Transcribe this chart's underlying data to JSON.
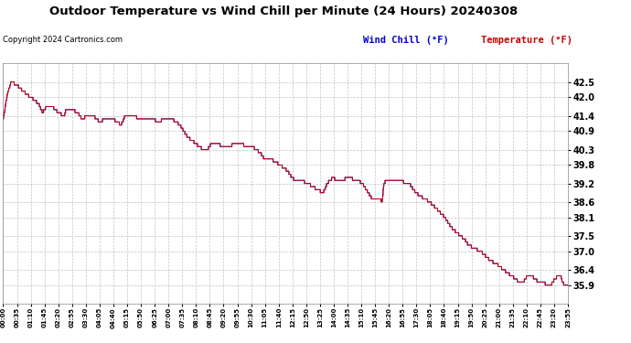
{
  "title": "Outdoor Temperature vs Wind Chill per Minute (24 Hours) 20240308",
  "copyright": "Copyright 2024 Cartronics.com",
  "legend_wind_chill": "Wind Chill (°F)",
  "legend_temperature": "Temperature (°F)",
  "ylim_min": 35.3,
  "ylim_max": 43.1,
  "yticks": [
    42.5,
    42.0,
    41.4,
    40.9,
    40.3,
    39.8,
    39.2,
    38.6,
    38.1,
    37.5,
    37.0,
    36.4,
    35.9
  ],
  "background_color": "#ffffff",
  "plot_bg_color": "#ffffff",
  "grid_color": "#bbbbbb",
  "wind_chill_color": "#0000cc",
  "temperature_color": "#cc0000",
  "xtick_labels": [
    "00:00",
    "00:35",
    "01:10",
    "01:45",
    "02:20",
    "02:55",
    "03:30",
    "04:05",
    "04:40",
    "05:15",
    "05:50",
    "06:25",
    "07:00",
    "07:35",
    "08:10",
    "08:45",
    "09:20",
    "09:55",
    "10:30",
    "11:05",
    "11:40",
    "12:15",
    "12:50",
    "13:25",
    "14:00",
    "14:35",
    "15:10",
    "15:45",
    "16:20",
    "16:55",
    "17:30",
    "18:05",
    "18:40",
    "19:15",
    "19:50",
    "20:25",
    "21:00",
    "21:35",
    "22:10",
    "22:45",
    "23:20",
    "23:55"
  ],
  "waypoints_temp": [
    [
      0,
      41.3
    ],
    [
      10,
      42.1
    ],
    [
      20,
      42.5
    ],
    [
      35,
      42.4
    ],
    [
      50,
      42.2
    ],
    [
      70,
      42.0
    ],
    [
      90,
      41.8
    ],
    [
      100,
      41.5
    ],
    [
      110,
      41.7
    ],
    [
      125,
      41.7
    ],
    [
      140,
      41.5
    ],
    [
      155,
      41.4
    ],
    [
      160,
      41.6
    ],
    [
      175,
      41.6
    ],
    [
      190,
      41.5
    ],
    [
      200,
      41.3
    ],
    [
      215,
      41.4
    ],
    [
      230,
      41.4
    ],
    [
      245,
      41.2
    ],
    [
      260,
      41.3
    ],
    [
      280,
      41.3
    ],
    [
      300,
      41.1
    ],
    [
      310,
      41.4
    ],
    [
      330,
      41.4
    ],
    [
      350,
      41.3
    ],
    [
      365,
      41.3
    ],
    [
      380,
      41.3
    ],
    [
      395,
      41.2
    ],
    [
      410,
      41.3
    ],
    [
      430,
      41.3
    ],
    [
      450,
      41.1
    ],
    [
      470,
      40.7
    ],
    [
      490,
      40.5
    ],
    [
      510,
      40.3
    ],
    [
      520,
      40.3
    ],
    [
      530,
      40.5
    ],
    [
      545,
      40.5
    ],
    [
      560,
      40.4
    ],
    [
      575,
      40.4
    ],
    [
      590,
      40.5
    ],
    [
      605,
      40.5
    ],
    [
      620,
      40.4
    ],
    [
      635,
      40.4
    ],
    [
      645,
      40.3
    ],
    [
      655,
      40.2
    ],
    [
      665,
      40.0
    ],
    [
      680,
      40.0
    ],
    [
      695,
      39.9
    ],
    [
      705,
      39.8
    ],
    [
      715,
      39.7
    ],
    [
      725,
      39.6
    ],
    [
      730,
      39.5
    ],
    [
      735,
      39.4
    ],
    [
      745,
      39.3
    ],
    [
      760,
      39.3
    ],
    [
      775,
      39.2
    ],
    [
      790,
      39.1
    ],
    [
      800,
      39.0
    ],
    [
      815,
      38.9
    ],
    [
      825,
      39.2
    ],
    [
      840,
      39.4
    ],
    [
      850,
      39.3
    ],
    [
      865,
      39.3
    ],
    [
      875,
      39.4
    ],
    [
      885,
      39.4
    ],
    [
      895,
      39.3
    ],
    [
      905,
      39.3
    ],
    [
      915,
      39.2
    ],
    [
      920,
      39.1
    ],
    [
      930,
      38.9
    ],
    [
      940,
      38.7
    ],
    [
      950,
      38.7
    ],
    [
      960,
      38.7
    ],
    [
      965,
      38.6
    ],
    [
      970,
      39.2
    ],
    [
      975,
      39.3
    ],
    [
      985,
      39.3
    ],
    [
      995,
      39.3
    ],
    [
      1005,
      39.3
    ],
    [
      1015,
      39.3
    ],
    [
      1025,
      39.2
    ],
    [
      1035,
      39.2
    ],
    [
      1045,
      39.0
    ],
    [
      1060,
      38.8
    ],
    [
      1075,
      38.7
    ],
    [
      1085,
      38.6
    ],
    [
      1095,
      38.5
    ],
    [
      1110,
      38.3
    ],
    [
      1125,
      38.1
    ],
    [
      1140,
      37.8
    ],
    [
      1155,
      37.6
    ],
    [
      1165,
      37.5
    ],
    [
      1175,
      37.4
    ],
    [
      1185,
      37.2
    ],
    [
      1200,
      37.1
    ],
    [
      1215,
      37.0
    ],
    [
      1225,
      36.9
    ],
    [
      1240,
      36.7
    ],
    [
      1255,
      36.6
    ],
    [
      1265,
      36.5
    ],
    [
      1275,
      36.4
    ],
    [
      1285,
      36.3
    ],
    [
      1295,
      36.2
    ],
    [
      1305,
      36.1
    ],
    [
      1315,
      36.0
    ],
    [
      1325,
      36.0
    ],
    [
      1335,
      36.2
    ],
    [
      1345,
      36.2
    ],
    [
      1355,
      36.1
    ],
    [
      1365,
      36.0
    ],
    [
      1375,
      36.0
    ],
    [
      1385,
      35.9
    ],
    [
      1395,
      35.9
    ],
    [
      1405,
      36.1
    ],
    [
      1415,
      36.2
    ],
    [
      1420,
      36.2
    ],
    [
      1425,
      36.0
    ],
    [
      1430,
      35.9
    ],
    [
      1435,
      35.9
    ],
    [
      1439,
      35.9
    ]
  ]
}
